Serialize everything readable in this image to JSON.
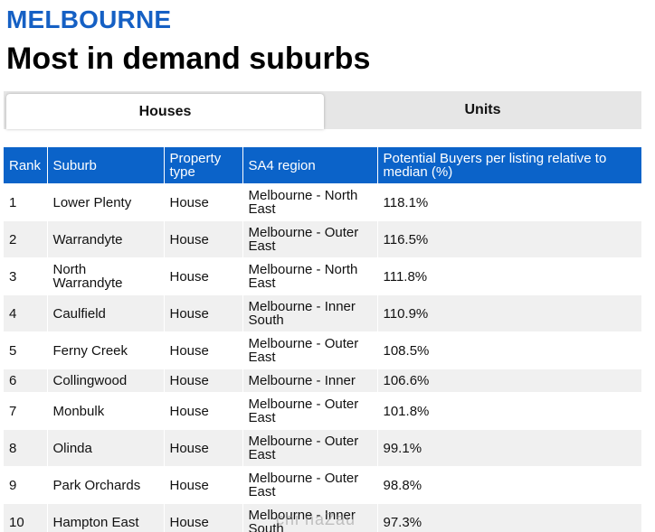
{
  "header": {
    "city": "MELBOURNE",
    "title": "Most in demand suburbs"
  },
  "tabs": [
    {
      "label": "Houses",
      "active": true
    },
    {
      "label": "Units",
      "active": false
    }
  ],
  "table": {
    "columns": [
      "Rank",
      "Suburb",
      "Property type",
      "SA4 region",
      "Potential Buyers per listing relative to median (%)"
    ],
    "rows": [
      {
        "rank": "1",
        "suburb": "Lower Plenty",
        "type": "House",
        "region": "Melbourne - North East",
        "value": "118.1%"
      },
      {
        "rank": "2",
        "suburb": "Warrandyte",
        "type": "House",
        "region": "Melbourne - Outer East",
        "value": "116.5%"
      },
      {
        "rank": "3",
        "suburb": "North Warrandyte",
        "type": "House",
        "region": "Melbourne - North East",
        "value": "111.8%"
      },
      {
        "rank": "4",
        "suburb": "Caulfield",
        "type": "House",
        "region": "Melbourne - Inner South",
        "value": "110.9%"
      },
      {
        "rank": "5",
        "suburb": "Ferny Creek",
        "type": "House",
        "region": "Melbourne - Outer East",
        "value": "108.5%"
      },
      {
        "rank": "6",
        "suburb": "Collingwood",
        "type": "House",
        "region": "Melbourne - Inner",
        "value": "106.6%"
      },
      {
        "rank": "7",
        "suburb": "Monbulk",
        "type": "House",
        "region": "Melbourne - Outer East",
        "value": "101.8%"
      },
      {
        "rank": "8",
        "suburb": "Olinda",
        "type": "House",
        "region": "Melbourne - Outer East",
        "value": "99.1%"
      },
      {
        "rank": "9",
        "suburb": "Park Orchards",
        "type": "House",
        "region": "Melbourne - Outer East",
        "value": "98.8%"
      },
      {
        "rank": "10",
        "suburb": "Hampton East",
        "type": "House",
        "region": "Melbourne - Inner South",
        "value": "97.3%"
      }
    ]
  },
  "watermark": "chi naZau",
  "colors": {
    "accent": "#1560c4",
    "header_bg": "#0b63c9",
    "stripe": "#f0f0f0",
    "tab_bg": "#e6e6e6"
  }
}
